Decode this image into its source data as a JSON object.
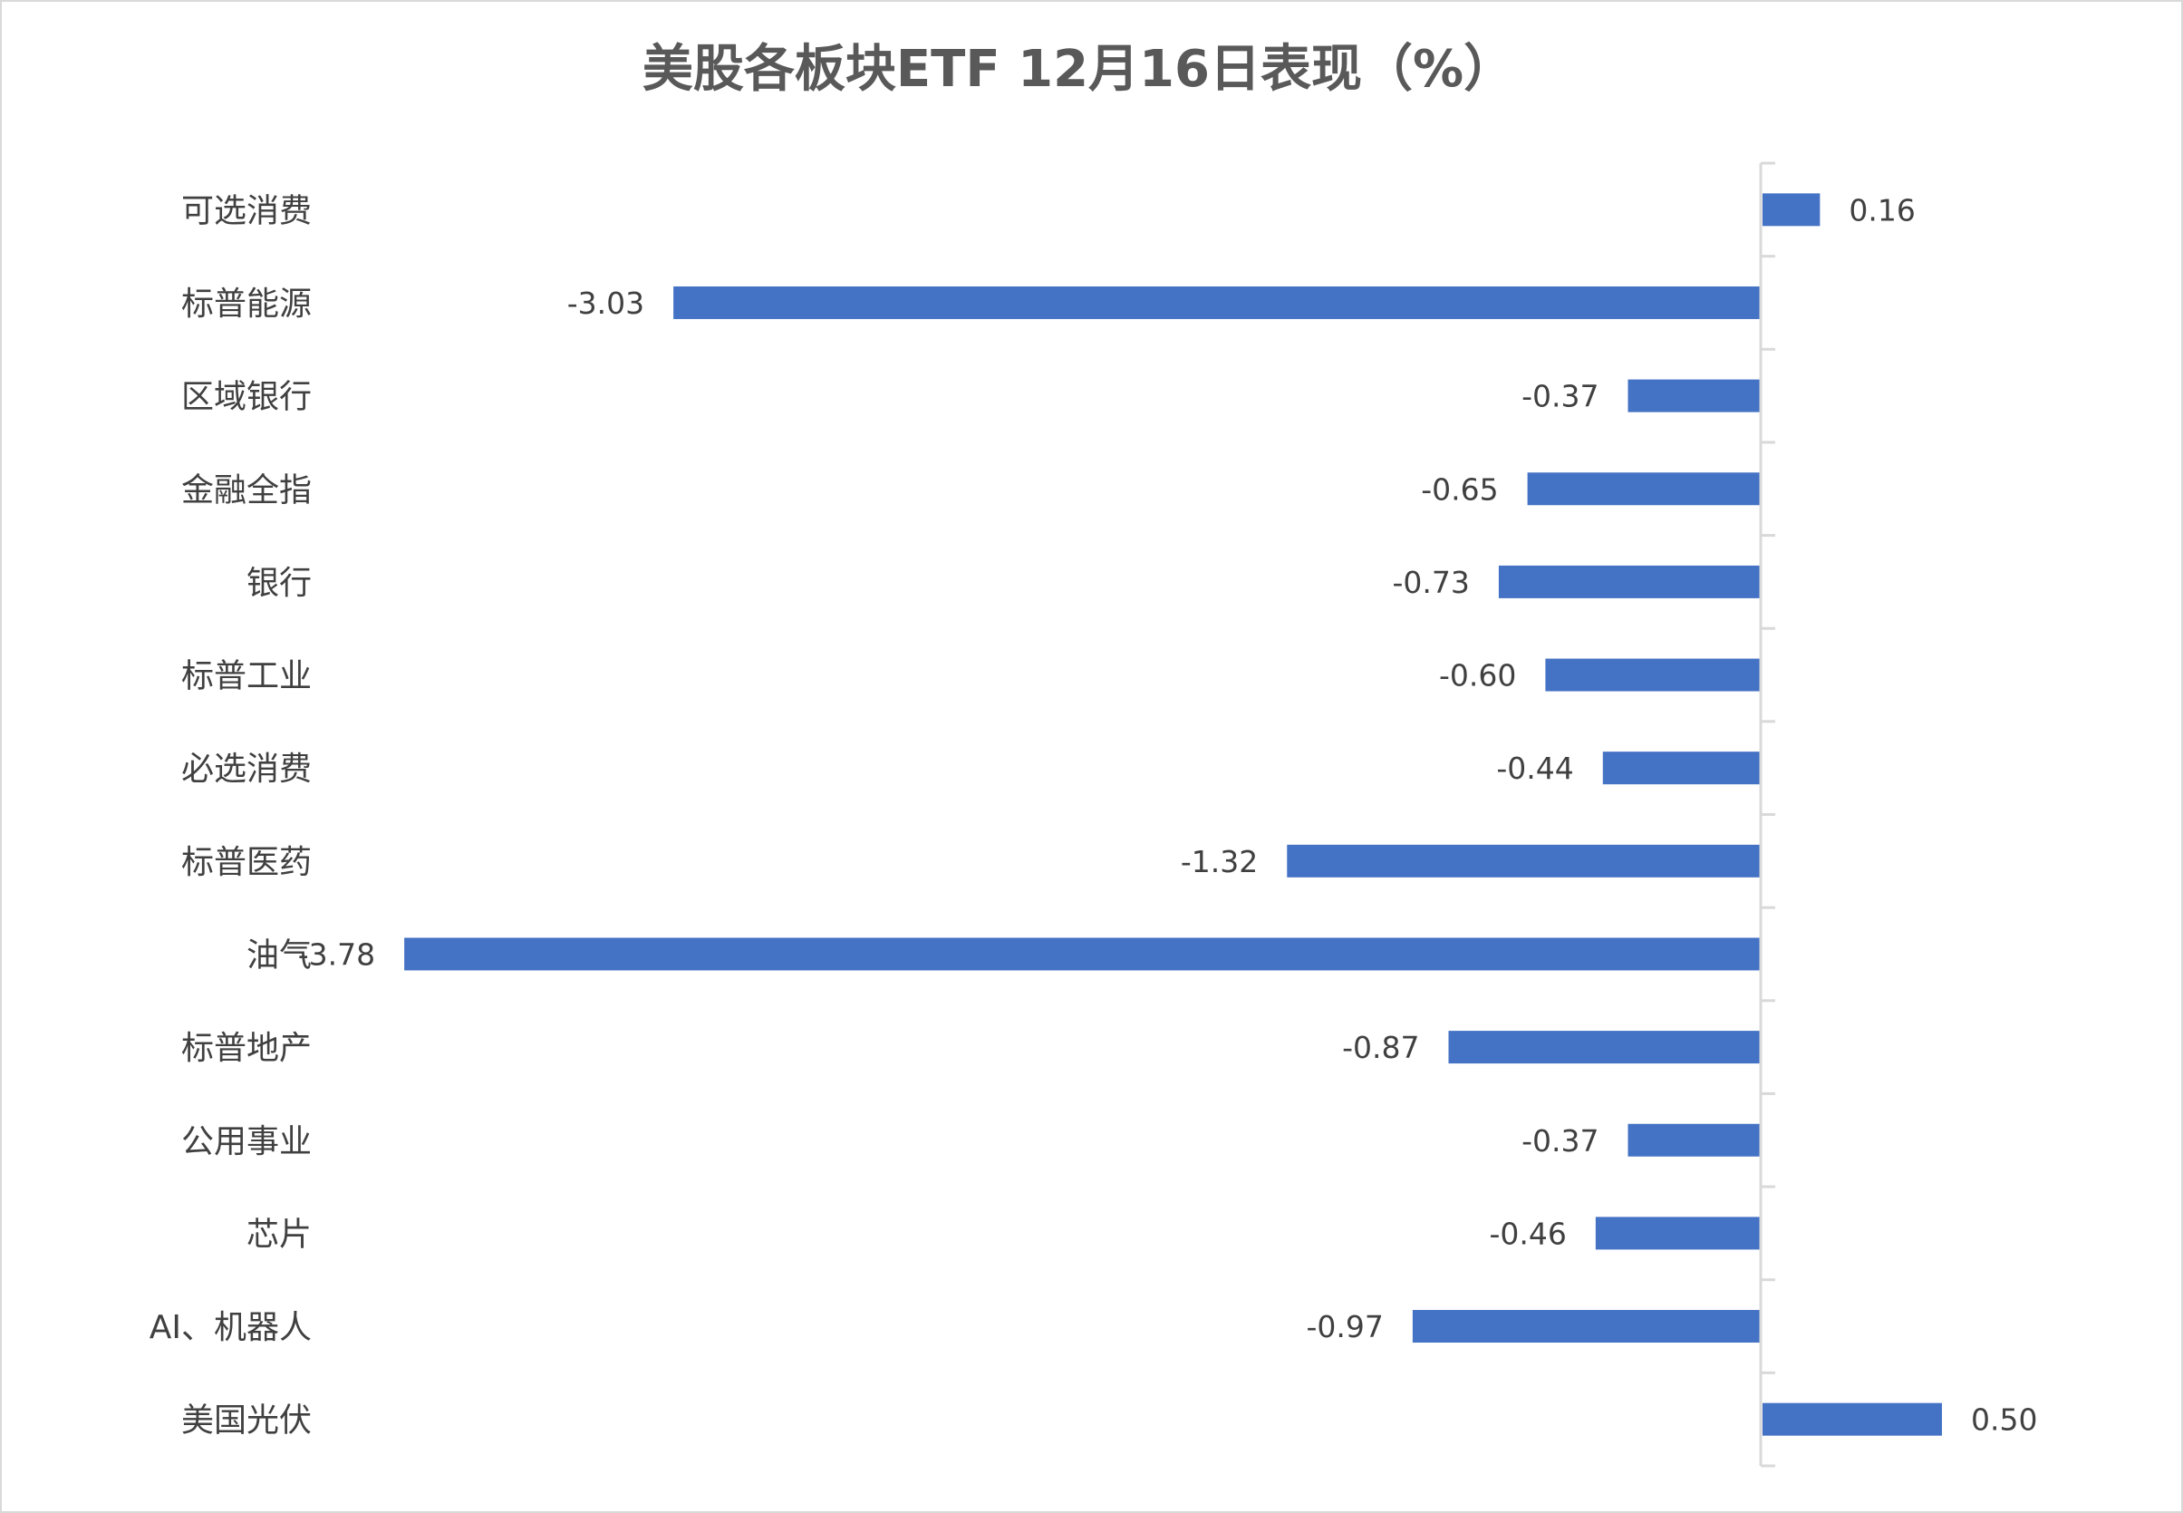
{
  "chart_data": {
    "type": "bar",
    "orientation": "horizontal",
    "title": "美股各板块ETF  12月16日表现（%）",
    "categories": [
      "可选消费",
      "标普能源",
      "区域银行",
      "金融全指",
      "银行",
      "标普工业",
      "必选消费",
      "标普医药",
      "油气",
      "标普地产",
      "公用事业",
      "芯片",
      "AI、机器人",
      "美国光伏"
    ],
    "values": [
      0.16,
      -3.03,
      -0.37,
      -0.65,
      -0.73,
      -0.6,
      -0.44,
      -1.32,
      -3.78,
      -0.87,
      -0.37,
      -0.46,
      -0.97,
      0.5
    ],
    "data_labels": [
      "0.16",
      "-3.03",
      "-0.37",
      "-0.65",
      "-0.73",
      "-0.60",
      "-0.44",
      "-1.32",
      "-3.78",
      "-0.87",
      "-0.37",
      "-0.46",
      "-0.97",
      "0.50"
    ],
    "xlim": [
      -3.78,
      0.5
    ],
    "grid": false,
    "legend": "none",
    "colors": {
      "bar": "#4472C4",
      "axis": "#D9D9D9",
      "text": "#404040",
      "title": "#595959"
    }
  }
}
